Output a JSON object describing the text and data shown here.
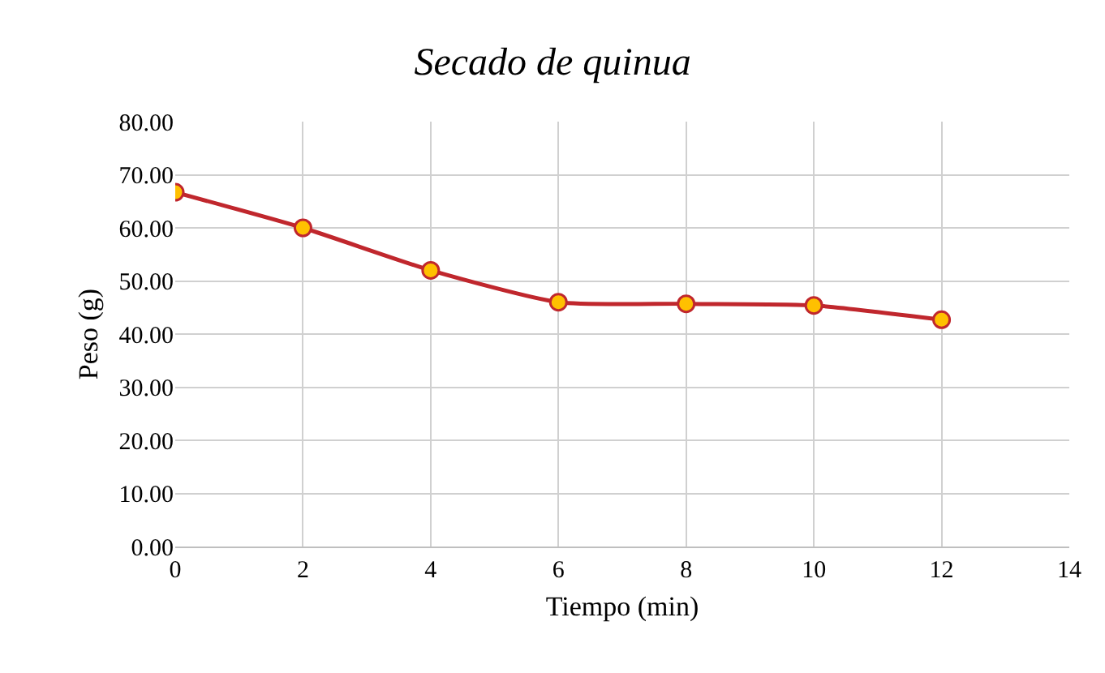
{
  "chart_data": {
    "type": "line",
    "title": "Secado de quinua",
    "xlabel": "Tiempo (min)",
    "ylabel": "Peso (g)",
    "x": [
      0,
      2,
      4,
      6,
      8,
      10,
      12
    ],
    "series": [
      {
        "color": "#c0272d",
        "values": [
          66.7,
          60.0,
          52.0,
          46.0,
          45.7,
          45.4,
          42.7
        ]
      }
    ],
    "xlim": [
      0,
      14
    ],
    "xticks": [
      0,
      2,
      4,
      6,
      8,
      10,
      12,
      14
    ],
    "ylim": [
      0,
      80
    ],
    "yticks": [
      {
        "value": 0,
        "label": "0.00"
      },
      {
        "value": 10,
        "label": "10.00"
      },
      {
        "value": 20,
        "label": "20.00"
      },
      {
        "value": 30,
        "label": "30.00"
      },
      {
        "value": 40,
        "label": "40.00"
      },
      {
        "value": 50,
        "label": "50.00"
      },
      {
        "value": 60,
        "label": "60.00"
      },
      {
        "value": 70,
        "label": "70.00"
      },
      {
        "value": 80,
        "label": "80.00"
      }
    ],
    "grid": true,
    "marker": "circle",
    "line_style": "solid"
  }
}
